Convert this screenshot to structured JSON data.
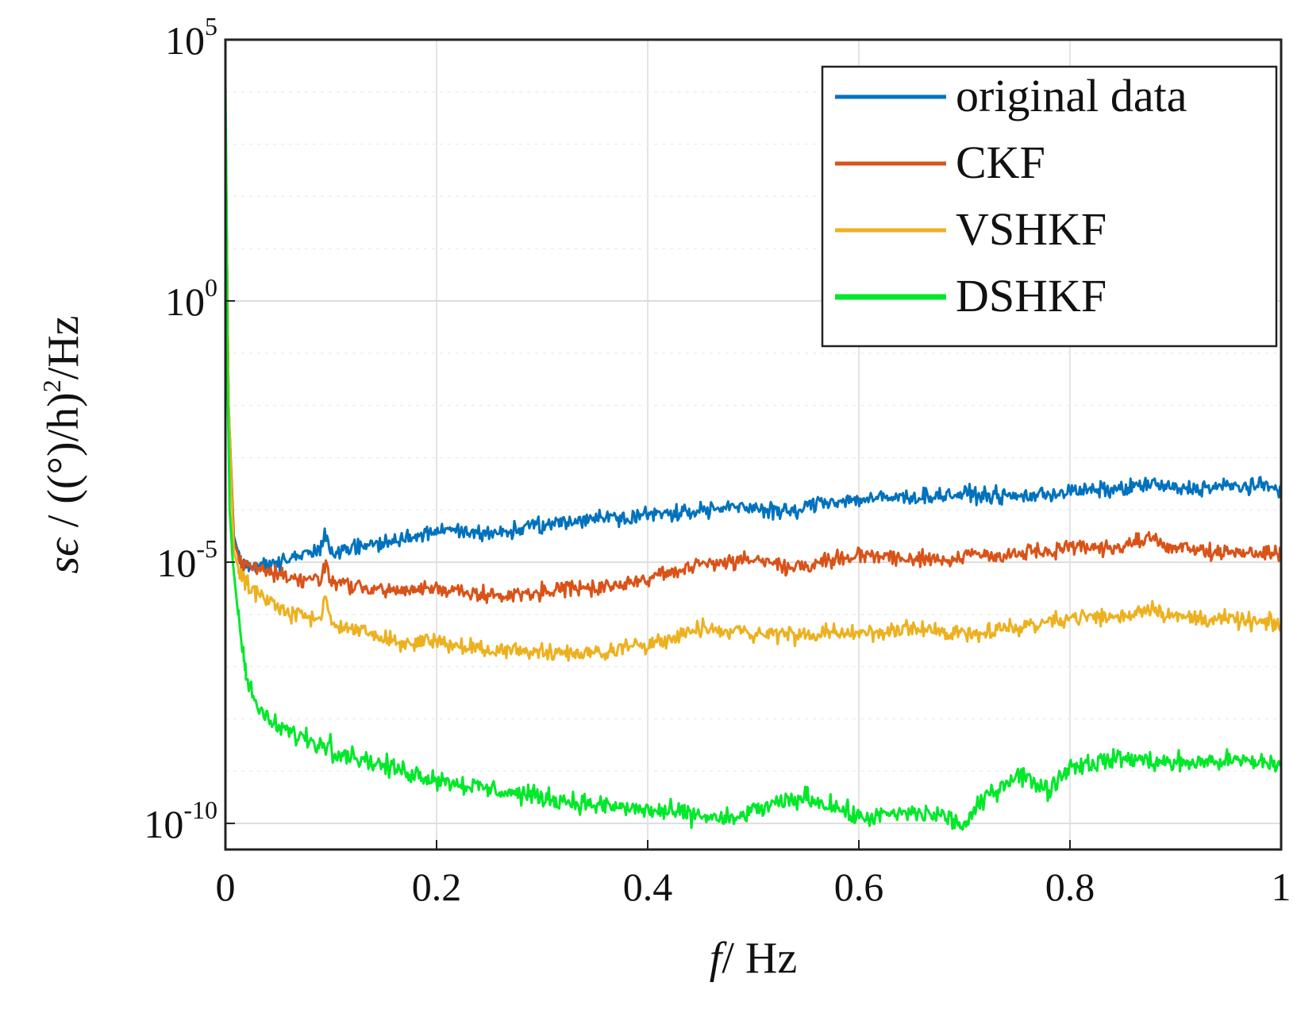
{
  "chart_data": {
    "type": "line",
    "xlabel_italic": "f",
    "xlabel_rest": "/ Hz",
    "ylabel_italic": "sϵ",
    "ylabel_rest": " / ((°)/h)",
    "ylabel_sup": "2",
    "ylabel_tail": "/Hz",
    "xlim": [
      0,
      1
    ],
    "ylim_log10": [
      -10.5,
      5
    ],
    "yscale": "log",
    "grid": true,
    "legend_position": "top-right",
    "x_ticks": [
      {
        "value": 0,
        "label": "0"
      },
      {
        "value": 0.2,
        "label": "0.2"
      },
      {
        "value": 0.4,
        "label": "0.4"
      },
      {
        "value": 0.6,
        "label": "0.6"
      },
      {
        "value": 0.8,
        "label": "0.8"
      },
      {
        "value": 1,
        "label": "1"
      }
    ],
    "y_ticks": [
      {
        "exp": 5,
        "base": "10",
        "sup": "5"
      },
      {
        "exp": 0,
        "base": "10",
        "sup": "0"
      },
      {
        "exp": -5,
        "base": "10",
        "sup": "-5"
      },
      {
        "exp": -10,
        "base": "10",
        "sup": "-10"
      }
    ],
    "series": [
      {
        "name": "original data",
        "color": "#0072BD",
        "width": 3,
        "noise": 0.13,
        "points": [
          [
            0,
            3.5
          ],
          [
            0.003,
            -2
          ],
          [
            0.008,
            -4.5
          ],
          [
            0.015,
            -5.05
          ],
          [
            0.03,
            -5.05
          ],
          [
            0.06,
            -4.95
          ],
          [
            0.09,
            -4.75
          ],
          [
            0.095,
            -4.5
          ],
          [
            0.1,
            -4.8
          ],
          [
            0.13,
            -4.7
          ],
          [
            0.16,
            -4.6
          ],
          [
            0.2,
            -4.4
          ],
          [
            0.25,
            -4.45
          ],
          [
            0.3,
            -4.3
          ],
          [
            0.35,
            -4.15
          ],
          [
            0.4,
            -4.1
          ],
          [
            0.45,
            -4.0
          ],
          [
            0.5,
            -3.95
          ],
          [
            0.54,
            -4.05
          ],
          [
            0.56,
            -3.85
          ],
          [
            0.6,
            -3.8
          ],
          [
            0.65,
            -3.75
          ],
          [
            0.7,
            -3.7
          ],
          [
            0.75,
            -3.75
          ],
          [
            0.8,
            -3.65
          ],
          [
            0.85,
            -3.6
          ],
          [
            0.875,
            -3.5
          ],
          [
            0.9,
            -3.6
          ],
          [
            0.95,
            -3.55
          ],
          [
            1.0,
            -3.55
          ]
        ]
      },
      {
        "name": "CKF",
        "color": "#D95319",
        "width": 3,
        "noise": 0.13,
        "points": [
          [
            0,
            3.5
          ],
          [
            0.003,
            -2
          ],
          [
            0.008,
            -4.6
          ],
          [
            0.015,
            -5.05
          ],
          [
            0.03,
            -5.1
          ],
          [
            0.06,
            -5.3
          ],
          [
            0.09,
            -5.35
          ],
          [
            0.095,
            -5.0
          ],
          [
            0.1,
            -5.35
          ],
          [
            0.13,
            -5.5
          ],
          [
            0.16,
            -5.55
          ],
          [
            0.2,
            -5.5
          ],
          [
            0.25,
            -5.65
          ],
          [
            0.3,
            -5.55
          ],
          [
            0.35,
            -5.5
          ],
          [
            0.4,
            -5.3
          ],
          [
            0.45,
            -5.05
          ],
          [
            0.5,
            -4.95
          ],
          [
            0.54,
            -5.1
          ],
          [
            0.56,
            -5.0
          ],
          [
            0.6,
            -4.85
          ],
          [
            0.65,
            -4.95
          ],
          [
            0.7,
            -4.9
          ],
          [
            0.75,
            -4.85
          ],
          [
            0.8,
            -4.75
          ],
          [
            0.85,
            -4.7
          ],
          [
            0.875,
            -4.55
          ],
          [
            0.9,
            -4.75
          ],
          [
            0.95,
            -4.8
          ],
          [
            1.0,
            -4.85
          ]
        ]
      },
      {
        "name": "VSHKF",
        "color": "#EDB120",
        "width": 3,
        "noise": 0.14,
        "points": [
          [
            0,
            3.5
          ],
          [
            0.003,
            -2
          ],
          [
            0.008,
            -4.8
          ],
          [
            0.015,
            -5.3
          ],
          [
            0.03,
            -5.6
          ],
          [
            0.06,
            -6.0
          ],
          [
            0.09,
            -6.1
          ],
          [
            0.095,
            -5.6
          ],
          [
            0.1,
            -6.2
          ],
          [
            0.13,
            -6.3
          ],
          [
            0.16,
            -6.55
          ],
          [
            0.2,
            -6.5
          ],
          [
            0.25,
            -6.7
          ],
          [
            0.3,
            -6.7
          ],
          [
            0.35,
            -6.75
          ],
          [
            0.4,
            -6.55
          ],
          [
            0.45,
            -6.3
          ],
          [
            0.5,
            -6.35
          ],
          [
            0.55,
            -6.4
          ],
          [
            0.6,
            -6.35
          ],
          [
            0.65,
            -6.3
          ],
          [
            0.7,
            -6.35
          ],
          [
            0.75,
            -6.25
          ],
          [
            0.8,
            -6.05
          ],
          [
            0.85,
            -6.05
          ],
          [
            0.875,
            -5.85
          ],
          [
            0.9,
            -6.05
          ],
          [
            0.95,
            -6.1
          ],
          [
            1.0,
            -6.2
          ]
        ]
      },
      {
        "name": "DSHKF",
        "color": "#00E82A",
        "width": 3,
        "noise": 0.16,
        "points": [
          [
            0,
            4.2
          ],
          [
            0.001,
            2
          ],
          [
            0.002,
            -1.5
          ],
          [
            0.004,
            -4
          ],
          [
            0.007,
            -5
          ],
          [
            0.012,
            -6
          ],
          [
            0.02,
            -7.2
          ],
          [
            0.03,
            -7.75
          ],
          [
            0.04,
            -8.05
          ],
          [
            0.06,
            -8.25
          ],
          [
            0.08,
            -8.4
          ],
          [
            0.095,
            -8.55
          ],
          [
            0.1,
            -8.3
          ],
          [
            0.101,
            -8.6
          ],
          [
            0.12,
            -8.7
          ],
          [
            0.15,
            -8.9
          ],
          [
            0.2,
            -9.15
          ],
          [
            0.25,
            -9.35
          ],
          [
            0.3,
            -9.5
          ],
          [
            0.35,
            -9.65
          ],
          [
            0.4,
            -9.75
          ],
          [
            0.45,
            -9.85
          ],
          [
            0.48,
            -9.95
          ],
          [
            0.5,
            -9.75
          ],
          [
            0.55,
            -9.5
          ],
          [
            0.58,
            -9.7
          ],
          [
            0.6,
            -9.9
          ],
          [
            0.65,
            -9.8
          ],
          [
            0.68,
            -9.85
          ],
          [
            0.7,
            -10.05
          ],
          [
            0.72,
            -9.5
          ],
          [
            0.75,
            -9.05
          ],
          [
            0.78,
            -9.35
          ],
          [
            0.8,
            -8.9
          ],
          [
            0.85,
            -8.75
          ],
          [
            0.9,
            -8.85
          ],
          [
            0.95,
            -8.8
          ],
          [
            1.0,
            -8.85
          ]
        ]
      }
    ]
  }
}
